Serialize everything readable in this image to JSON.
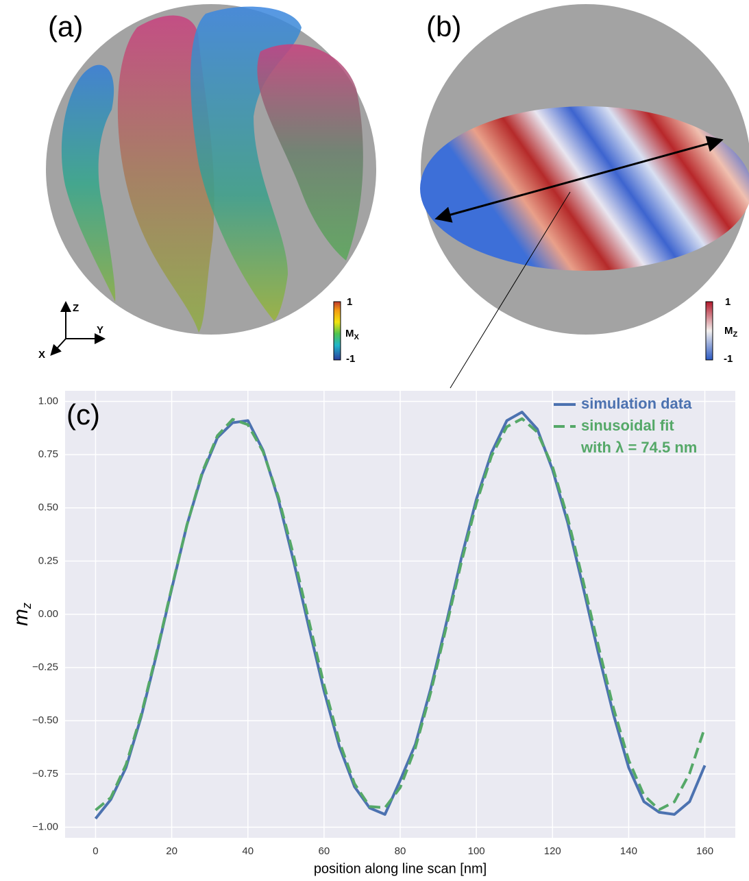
{
  "panels": {
    "a": {
      "label": "(a)",
      "colorbar": {
        "max": "1",
        "min": "-1",
        "title": {
          "text": "M",
          "subscript": "X"
        }
      },
      "axes": {
        "z": "Z",
        "y": "Y",
        "x": "X"
      }
    },
    "b": {
      "label": "(b)",
      "colorbar": {
        "max": "1",
        "min": "-1",
        "title": {
          "text": "M",
          "subscript": "Z"
        }
      }
    }
  },
  "chart_data": {
    "type": "line",
    "panel_label": "(c)",
    "xlabel": "position along line scan [nm]",
    "ylabel": {
      "text": "m",
      "subscript": "z"
    },
    "x": [
      0,
      4,
      8,
      12,
      16,
      20,
      24,
      28,
      32,
      36,
      40,
      44,
      48,
      52,
      56,
      60,
      64,
      68,
      72,
      76,
      80,
      84,
      88,
      92,
      96,
      100,
      104,
      108,
      112,
      116,
      120,
      124,
      128,
      132,
      136,
      140,
      144,
      148,
      152,
      156,
      160
    ],
    "series": [
      {
        "name": "simulation data",
        "color": "#4c72b0",
        "dash": false,
        "values": [
          -0.96,
          -0.87,
          -0.72,
          -0.48,
          -0.19,
          0.12,
          0.42,
          0.66,
          0.83,
          0.9,
          0.91,
          0.77,
          0.54,
          0.25,
          -0.06,
          -0.36,
          -0.62,
          -0.81,
          -0.91,
          -0.94,
          -0.78,
          -0.61,
          -0.35,
          -0.05,
          0.26,
          0.54,
          0.76,
          0.91,
          0.95,
          0.87,
          0.68,
          0.43,
          0.13,
          -0.18,
          -0.47,
          -0.72,
          -0.88,
          -0.93,
          -0.94,
          -0.88,
          -0.71
        ]
      },
      {
        "name": "sinusoidal fit",
        "color": "#55a868",
        "dash": true,
        "values": [
          -0.92,
          -0.861,
          -0.706,
          -0.471,
          -0.183,
          0.125,
          0.42,
          0.667,
          0.839,
          0.916,
          0.891,
          0.764,
          0.551,
          0.277,
          -0.029,
          -0.332,
          -0.597,
          -0.796,
          -0.903,
          -0.909,
          -0.814,
          -0.626,
          -0.368,
          -0.067,
          0.24,
          0.521,
          0.745,
          0.881,
          0.919,
          0.856,
          0.694,
          0.452,
          0.159,
          -0.146,
          -0.44,
          -0.685,
          -0.85,
          -0.918,
          -0.881,
          -0.747,
          -0.532
        ]
      }
    ],
    "legend_note": "with λ = 74.5 nm",
    "xlim": [
      -8,
      168
    ],
    "ylim": [
      -1.05,
      1.05
    ],
    "xticks": [
      0,
      20,
      40,
      60,
      80,
      100,
      120,
      140,
      160
    ],
    "yticks": [
      {
        "value": 1,
        "label": "1.00"
      },
      {
        "value": 0.75,
        "label": "0.75"
      },
      {
        "value": 0.5,
        "label": "0.50"
      },
      {
        "value": 0.25,
        "label": "0.25"
      },
      {
        "value": 0,
        "label": "0.00"
      },
      {
        "value": -0.25,
        "label": "−0.25"
      },
      {
        "value": -0.5,
        "label": "−0.50"
      },
      {
        "value": -0.75,
        "label": "−0.75"
      },
      {
        "value": -1,
        "label": "−1.00"
      }
    ],
    "grid": true,
    "legend": "upper right",
    "background": "#eaeaf2"
  }
}
